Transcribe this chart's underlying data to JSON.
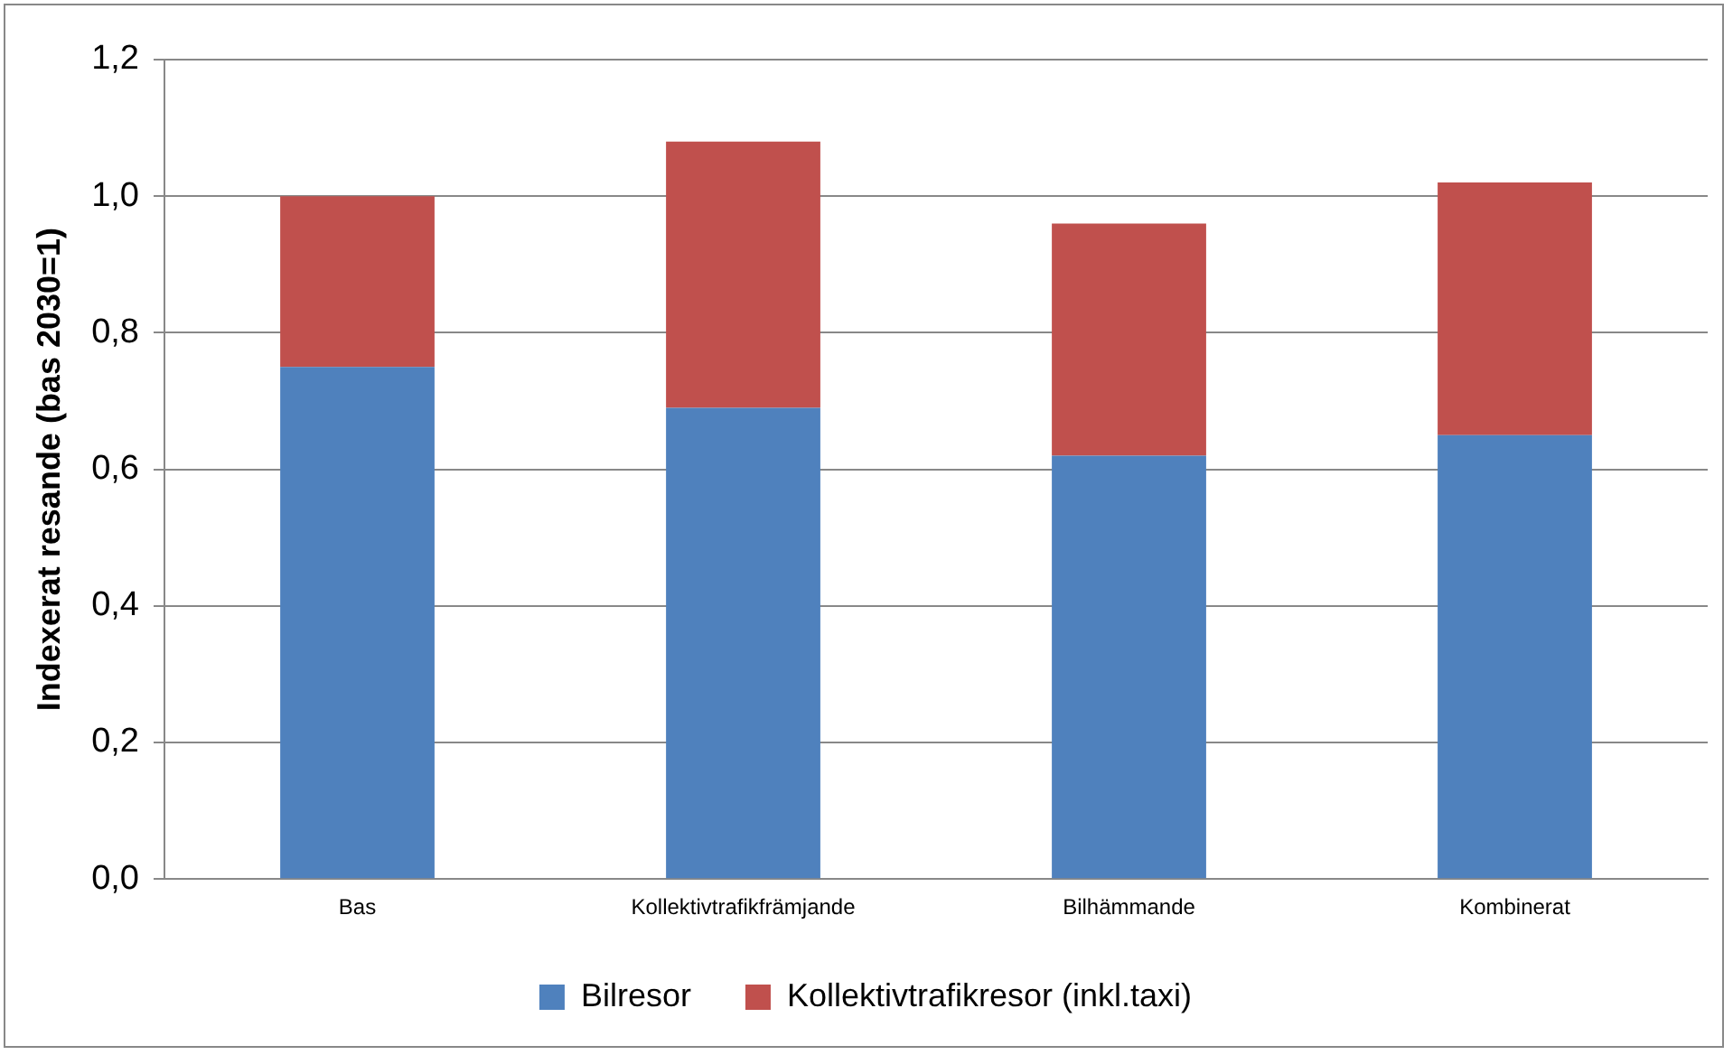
{
  "chart_data": {
    "type": "bar",
    "stacked": true,
    "ylabel": "Indexerat resande (bas 2030=1)",
    "categories": [
      "Bas",
      "Kollektivtrafikfrämjande",
      "Bilhämmande",
      "Kombinerat"
    ],
    "series": [
      {
        "name": "Bilresor",
        "color": "#4f81bd",
        "values": [
          0.75,
          0.69,
          0.62,
          0.65
        ]
      },
      {
        "name": "Kollektivtrafikresor (inkl.taxi)",
        "color": "#c0504d",
        "values": [
          0.25,
          0.39,
          0.34,
          0.37
        ]
      }
    ],
    "ylim": [
      0,
      1.2
    ],
    "yticks": [
      {
        "value": 0,
        "label": "0,0"
      },
      {
        "value": 0.2,
        "label": "0,2"
      },
      {
        "value": 0.4,
        "label": "0,4"
      },
      {
        "value": 0.6,
        "label": "0,6"
      },
      {
        "value": 0.8,
        "label": "0,8"
      },
      {
        "value": 1,
        "label": "1,0"
      },
      {
        "value": 1.2,
        "label": "1,2"
      }
    ],
    "grid": "y",
    "legend": "bottom"
  }
}
